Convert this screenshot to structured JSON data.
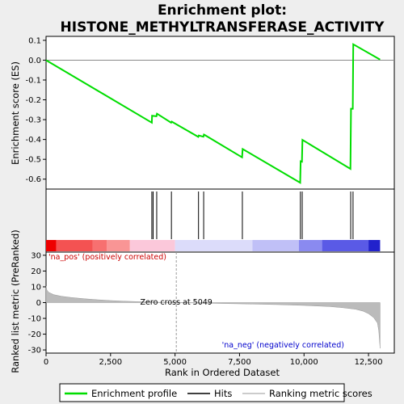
{
  "title_line1": "Enrichment plot:",
  "title_line2": "HISTONE_METHYLTRANSFERASE_ACTIVITY",
  "chart_data": [
    {
      "type": "line",
      "panel": "enrichment",
      "ylabel": "Enrichment score (ES)",
      "xlim": [
        0,
        13500
      ],
      "ylim": [
        -0.65,
        0.12
      ],
      "yticks": [
        0.1,
        0.0,
        -0.1,
        -0.2,
        -0.3,
        -0.4,
        -0.5,
        -0.6
      ],
      "ytick_labels": [
        "0.1",
        "0.0",
        "-0.1",
        "-0.2",
        "-0.3",
        "-0.4",
        "-0.5",
        "-0.6"
      ],
      "color": "#00dd00",
      "x": [
        0,
        4100,
        4110,
        4280,
        4300,
        4850,
        4870,
        5900,
        5920,
        6100,
        6120,
        7600,
        7620,
        9850,
        9870,
        9920,
        9940,
        11800,
        11820,
        11890,
        11910,
        12950
      ],
      "y": [
        0.0,
        -0.315,
        -0.28,
        -0.283,
        -0.27,
        -0.315,
        -0.31,
        -0.387,
        -0.38,
        -0.386,
        -0.375,
        -0.49,
        -0.448,
        -0.618,
        -0.51,
        -0.512,
        -0.402,
        -0.548,
        -0.245,
        -0.245,
        0.08,
        0.003
      ]
    },
    {
      "type": "line",
      "panel": "hits",
      "hit_positions": [
        4100,
        4150,
        4290,
        4860,
        5910,
        6110,
        7610,
        9860,
        9930,
        11810,
        11900
      ]
    },
    {
      "type": "area",
      "panel": "ranked_metric",
      "xlabel": "Rank in Ordered Dataset",
      "ylabel": "Ranked list metric (PreRanked)",
      "xlim": [
        0,
        13500
      ],
      "ylim": [
        -32,
        32
      ],
      "xticks": [
        0,
        2500,
        5000,
        7500,
        10000,
        12500
      ],
      "xtick_labels": [
        "0",
        "2,500",
        "5,000",
        "7,500",
        "10,000",
        "12,500"
      ],
      "yticks": [
        30,
        20,
        10,
        0,
        -10,
        -20,
        -30
      ],
      "ytick_labels": [
        "30",
        "20",
        "10",
        "0",
        "-10",
        "-20",
        "-30"
      ],
      "x": [
        0,
        30,
        100,
        300,
        600,
        1000,
        1500,
        2000,
        2500,
        3000,
        3500,
        4000,
        4500,
        5049,
        6000,
        7000,
        8000,
        9000,
        10000,
        11000,
        11500,
        12000,
        12300,
        12500,
        12700,
        12850,
        12900,
        12950
      ],
      "y": [
        10.5,
        8,
        6.5,
        5,
        4,
        3.2,
        2.4,
        1.8,
        1.3,
        0.9,
        0.6,
        0.35,
        0.15,
        0,
        -0.3,
        -0.6,
        -0.9,
        -1.3,
        -1.8,
        -2.5,
        -3.2,
        -4.2,
        -5.5,
        -7,
        -9.5,
        -13,
        -18,
        -29
      ]
    }
  ],
  "annotations": {
    "pos_label": "'na_pos' (positively correlated)",
    "neg_label": "'na_neg' (negatively correlated)",
    "zero_cross": "Zero cross at 5049",
    "zero_cross_x": 5049
  },
  "colorbar": {
    "segments": [
      {
        "from": 0,
        "to": 400,
        "color": "#ee0000"
      },
      {
        "from": 400,
        "to": 1800,
        "color": "#f45252"
      },
      {
        "from": 1800,
        "to": 2350,
        "color": "#f77070"
      },
      {
        "from": 2350,
        "to": 3250,
        "color": "#f99595"
      },
      {
        "from": 3250,
        "to": 5000,
        "color": "#fbc8da"
      },
      {
        "from": 5000,
        "to": 8000,
        "color": "#dcdcfa"
      },
      {
        "from": 8000,
        "to": 9800,
        "color": "#c0c0f7"
      },
      {
        "from": 9800,
        "to": 10700,
        "color": "#8a8af0"
      },
      {
        "from": 10700,
        "to": 12500,
        "color": "#5a5ae6"
      },
      {
        "from": 12500,
        "to": 12950,
        "color": "#2222cc"
      }
    ]
  },
  "legend": {
    "items": [
      {
        "label": "Enrichment profile",
        "color": "#00dd00"
      },
      {
        "label": "Hits",
        "color": "#000000"
      },
      {
        "label": "Ranking metric scores",
        "color": "#bbbbbb"
      }
    ]
  }
}
